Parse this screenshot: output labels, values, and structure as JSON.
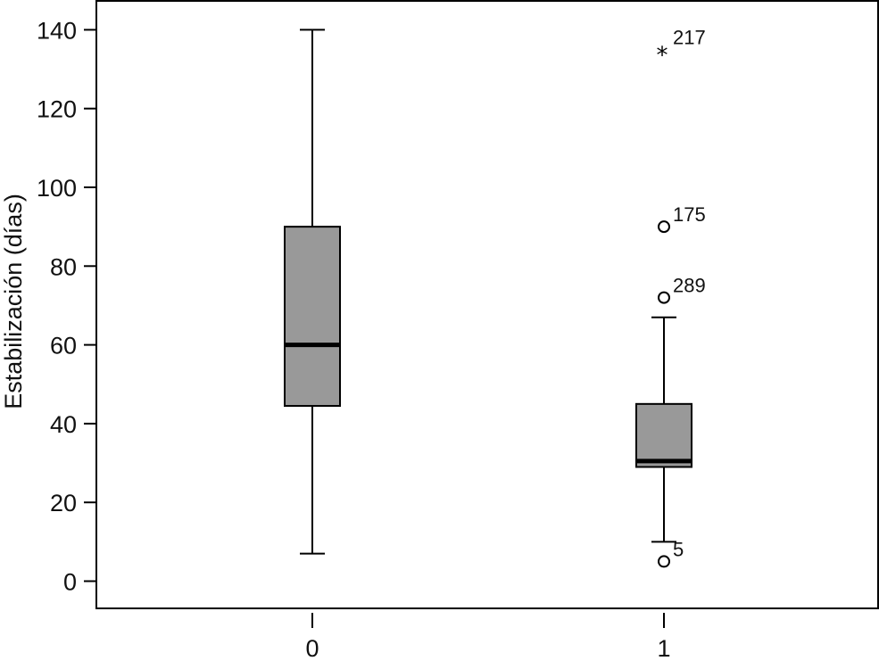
{
  "chart_data": {
    "type": "box",
    "ylabel": "Estabilización (días)",
    "xlabel": "",
    "ylim": [
      0,
      140
    ],
    "yticks": [
      "0",
      "20",
      "40",
      "60",
      "80",
      "100",
      "120",
      "140"
    ],
    "categories": [
      "0",
      "1"
    ],
    "box_color": "#999999",
    "grid": false,
    "groups": [
      {
        "category": "0",
        "whisker_low": 7,
        "q1": 44.5,
        "median": 60,
        "q3": 90,
        "whisker_high": 140,
        "outliers": []
      },
      {
        "category": "1",
        "whisker_low": 10,
        "q1": 29,
        "median": 30.5,
        "q3": 45,
        "whisker_high": 67,
        "outliers": [
          {
            "value": 5,
            "label": "5",
            "marker": "circle"
          },
          {
            "value": 72,
            "label": "289",
            "marker": "circle"
          },
          {
            "value": 90,
            "label": "175",
            "marker": "circle"
          },
          {
            "value": 135,
            "label": "217",
            "marker": "star"
          }
        ]
      }
    ]
  }
}
